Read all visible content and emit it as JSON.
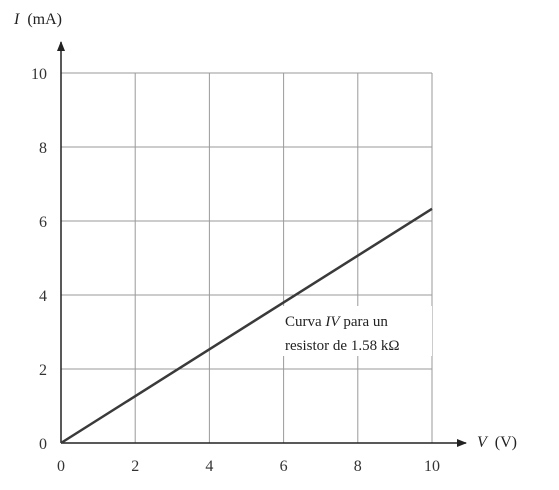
{
  "chart_data": {
    "type": "line",
    "title": "",
    "xlabel": {
      "var": "V",
      "unit": "(V)"
    },
    "ylabel": {
      "var": "I",
      "unit": "(mA)"
    },
    "xlim": [
      0,
      10
    ],
    "ylim": [
      0,
      10
    ],
    "xticks": [
      "0",
      "2",
      "4",
      "6",
      "8",
      "10"
    ],
    "yticks": [
      "0",
      "2",
      "4",
      "6",
      "8",
      "10"
    ],
    "grid": true,
    "series": [
      {
        "x": [
          0,
          10
        ],
        "y": [
          0,
          6.33
        ],
        "color": "#3a3a3a"
      }
    ],
    "annotation": {
      "line1_pre": "Curva ",
      "line1_em": "IV",
      "line1_post": " para un",
      "line2": "resistor de 1.58 kΩ"
    }
  }
}
